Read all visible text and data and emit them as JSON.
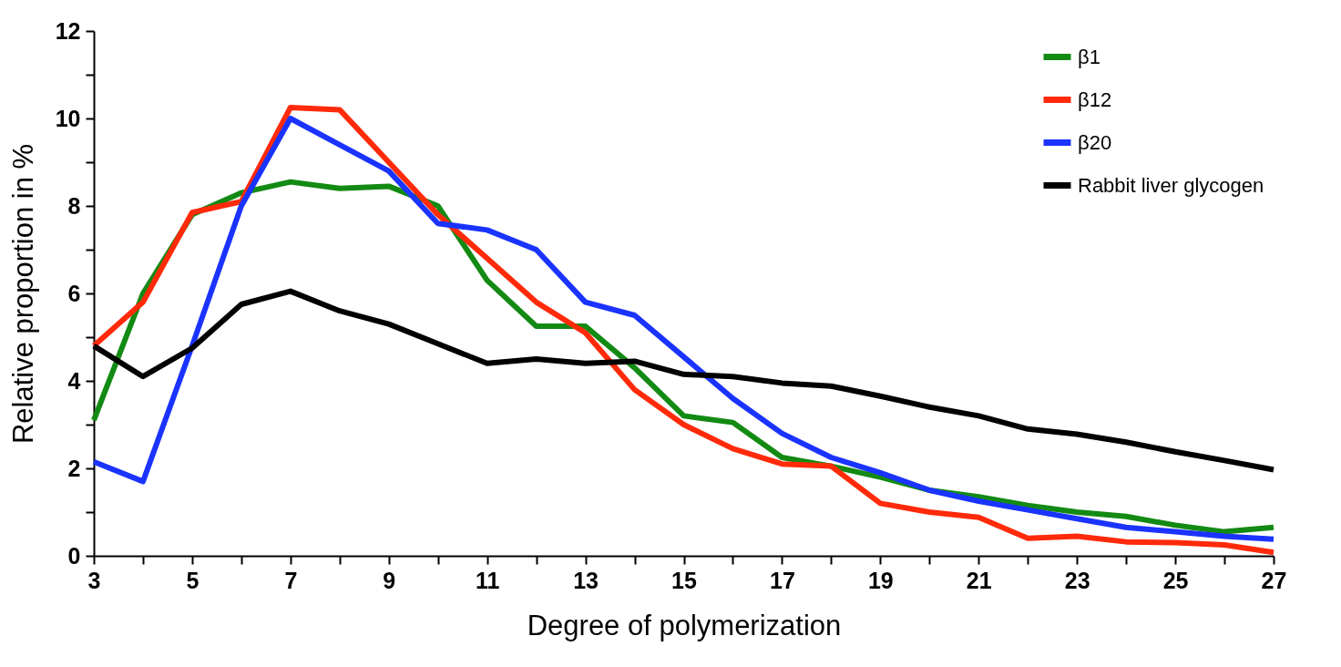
{
  "chart_data": {
    "type": "line",
    "xlabel": "Degree of polymerization",
    "ylabel": "Relative proportion in %",
    "x": [
      3,
      4,
      5,
      6,
      7,
      8,
      9,
      10,
      11,
      12,
      13,
      14,
      15,
      16,
      17,
      18,
      19,
      20,
      21,
      22,
      23,
      24,
      25,
      26,
      27
    ],
    "series": [
      {
        "name": "β1",
        "color": "#138a13",
        "values": [
          3.1,
          6.0,
          7.8,
          8.3,
          8.55,
          8.4,
          8.45,
          8.0,
          6.3,
          5.25,
          5.25,
          4.3,
          3.2,
          3.05,
          2.25,
          2.05,
          1.8,
          1.5,
          1.35,
          1.15,
          1.0,
          0.9,
          0.7,
          0.55,
          0.65
        ]
      },
      {
        "name": "β12",
        "color": "#ff2a0a",
        "values": [
          4.8,
          5.8,
          7.85,
          8.1,
          10.25,
          10.2,
          9.0,
          7.8,
          6.8,
          5.8,
          5.1,
          3.8,
          3.0,
          2.45,
          2.1,
          2.05,
          1.2,
          1.0,
          0.88,
          0.4,
          0.45,
          0.32,
          0.3,
          0.25,
          0.08
        ]
      },
      {
        "name": "β20",
        "color": "#1a33ff",
        "values": [
          2.15,
          1.7,
          4.8,
          8.0,
          10.0,
          9.4,
          8.8,
          7.6,
          7.45,
          7.0,
          5.8,
          5.5,
          4.55,
          3.6,
          2.8,
          2.25,
          1.9,
          1.5,
          1.25,
          1.05,
          0.85,
          0.65,
          0.55,
          0.45,
          0.38
        ]
      },
      {
        "name": "Rabbit liver glycogen",
        "color": "#000000",
        "values": [
          4.8,
          4.1,
          4.75,
          5.75,
          6.05,
          5.6,
          5.3,
          4.85,
          4.4,
          4.5,
          4.4,
          4.45,
          4.15,
          4.1,
          3.95,
          3.88,
          3.65,
          3.4,
          3.2,
          2.9,
          2.78,
          2.6,
          2.38,
          2.18,
          1.97
        ]
      }
    ],
    "xlim": [
      3,
      27
    ],
    "xticks": [
      3,
      {
        "value": 4,
        "label": null
      },
      5,
      {
        "value": 6,
        "label": null
      },
      7,
      {
        "value": 8,
        "label": null
      },
      9,
      {
        "value": 10,
        "label": null
      },
      11,
      {
        "value": 12,
        "label": null
      },
      13,
      {
        "value": 14,
        "label": null
      },
      15,
      {
        "value": 16,
        "label": null
      },
      17,
      {
        "value": 18,
        "label": null
      },
      19,
      {
        "value": 20,
        "label": null
      },
      21,
      {
        "value": 22,
        "label": null
      },
      23,
      {
        "value": 24,
        "label": null
      },
      25,
      {
        "value": 26,
        "label": null
      },
      27
    ],
    "ylim": [
      0,
      12
    ],
    "yticks": [
      0,
      {
        "value": 1,
        "label": null
      },
      2,
      {
        "value": 3,
        "label": null
      },
      4,
      {
        "value": 5,
        "label": null
      },
      6,
      {
        "value": 7,
        "label": null
      },
      8,
      {
        "value": 9,
        "label": null
      },
      10,
      {
        "value": 11,
        "label": null
      },
      12
    ],
    "legend": "top right",
    "grid": false,
    "line_style": "solid"
  }
}
